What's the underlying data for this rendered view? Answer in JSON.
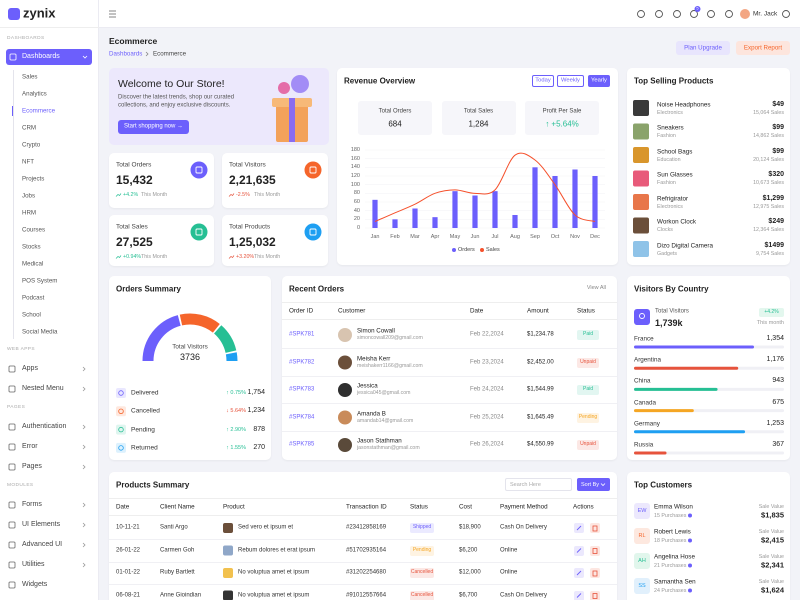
{
  "sidebar": {
    "logo": "zynix",
    "active_index": 2,
    "groups": [
      {
        "heading": "DASHBOARDS",
        "items": [
          "Dashboards"
        ],
        "submenu": [
          "Sales",
          "Analytics",
          "Ecommerce",
          "CRM",
          "Crypto",
          "NFT",
          "Projects",
          "Jobs",
          "HRM",
          "Courses",
          "Stocks",
          "Medical",
          "POS System",
          "Podcast",
          "School",
          "Social Media"
        ]
      },
      {
        "heading": "WEB APPS",
        "items": [
          "Apps",
          "Nested Menu"
        ]
      },
      {
        "heading": "PAGES",
        "items": [
          "Authentication",
          "Error",
          "Pages"
        ]
      },
      {
        "heading": "MODULES",
        "items": [
          "Forms",
          "UI Elements",
          "Advanced UI",
          "Utilities",
          "Widgets"
        ]
      }
    ]
  },
  "header": {
    "user": "Mr. Jack",
    "cart_badge": "5"
  },
  "page": {
    "title": "Ecommerce",
    "breadcrumb": [
      "Dashboards",
      "Ecommerce"
    ],
    "buttons": [
      "Plan Upgrade",
      "Export Report"
    ]
  },
  "welcome": {
    "title": "Welcome to Our Store!",
    "text": [
      "Discover the latest trends, shop our curated",
      "collections, and enjoy exclusive discounts."
    ],
    "button": "Start shopping now →"
  },
  "stats": [
    {
      "label": "Total Orders",
      "value": "15,432",
      "change": "+4.2%",
      "period": "This Month",
      "color": "#6c5ffc",
      "trend_color": "#26bf94"
    },
    {
      "label": "Total Visitors",
      "value": "2,21,635",
      "change": "-2.5%",
      "period": "This Month",
      "color": "#f5652b",
      "trend_color": "#e6533c"
    },
    {
      "label": "Total Sales",
      "value": "27,525",
      "change": "+0.94%",
      "period": "This Month",
      "color": "#26bf94",
      "trend_color": "#26bf94"
    },
    {
      "label": "Total Products",
      "value": "1,25,032",
      "change": "+3.20%",
      "period": "This Month",
      "color": "#1e9ff2",
      "trend_color": "#e6533c"
    }
  ],
  "revenue_overview": {
    "title": "Revenue Overview",
    "tabs": [
      "Today",
      "Weekly",
      "Yearly"
    ],
    "active_tab": 2,
    "stats": [
      {
        "label": "Total Orders",
        "value": "684"
      },
      {
        "label": "Total Sales",
        "value": "1,284"
      },
      {
        "label": "Profit Per Sale",
        "value": "↑ +5.64%"
      }
    ],
    "chart": {
      "type": "bar",
      "categories": [
        "Jan",
        "Feb",
        "Mar",
        "Apr",
        "May",
        "Jun",
        "Jul",
        "Aug",
        "Sep",
        "Oct",
        "Nov",
        "Dec"
      ],
      "series": [
        {
          "name": "Orders",
          "type": "bar",
          "color": "#6c5ffc",
          "values": [
            65,
            20,
            45,
            25,
            85,
            75,
            85,
            30,
            140,
            120,
            135,
            120
          ]
        },
        {
          "name": "Sales",
          "type": "line",
          "color": "#f5502b",
          "values": [
            15,
            35,
            55,
            80,
            88,
            80,
            88,
            168,
            157,
            100,
            30,
            15
          ]
        }
      ],
      "ylim": [
        0,
        180
      ],
      "yticks": [
        0,
        20,
        40,
        60,
        80,
        100,
        120,
        140,
        160,
        180
      ]
    }
  },
  "top_selling": {
    "title": "Top Selling Products",
    "items": [
      {
        "name": "Noise Headphones",
        "category": "Electronics",
        "price": "$49",
        "sales": "15,064 Sales"
      },
      {
        "name": "Sneakers",
        "category": "Fashion",
        "price": "$99",
        "sales": "14,862 Sales"
      },
      {
        "name": "School Bags",
        "category": "Education",
        "price": "$99",
        "sales": "20,124 Sales"
      },
      {
        "name": "Sun Glasses",
        "category": "Fashion",
        "price": "$320",
        "sales": "10,673 Sales"
      },
      {
        "name": "Refrigirator",
        "category": "Electronics",
        "price": "$1,299",
        "sales": "12,975 Sales"
      },
      {
        "name": "Workon Clock",
        "category": "Clocks",
        "price": "$249",
        "sales": "12,364 Sales"
      },
      {
        "name": "Dizo Digital Camera",
        "category": "Gadgets",
        "price": "$1499",
        "sales": "9,754 Sales"
      }
    ]
  },
  "orders_summary": {
    "title": "Orders Summary",
    "center_label": "Total Visitors",
    "center_value": "3736",
    "items": [
      {
        "label": "Delivered",
        "change": "↑ 0.75%",
        "value": 1754,
        "value_label": "1,754",
        "color": "#6c5ffc",
        "trend_color": "#26bf94"
      },
      {
        "label": "Cancelled",
        "change": "↓ 5.64%",
        "value": 1234,
        "value_label": "1,234",
        "color": "#f5652b",
        "trend_color": "#e6533c"
      },
      {
        "label": "Pending",
        "change": "↑ 2.90%",
        "value": 878,
        "value_label": "878",
        "color": "#26bf94",
        "trend_color": "#26bf94"
      },
      {
        "label": "Returned",
        "change": "↑ 1.55%",
        "value": 270,
        "value_label": "270",
        "color": "#1e9ff2",
        "trend_color": "#26bf94"
      }
    ]
  },
  "recent_orders": {
    "title": "Recent Orders",
    "link": "View All",
    "columns": [
      "Order ID",
      "Customer",
      "Date",
      "Amount",
      "Status"
    ],
    "rows": [
      {
        "id": "#SPK781",
        "name": "Simon Cowall",
        "email": "simoncowall209@gmail.com",
        "date": "Feb 22,2024",
        "amount": "$1,234.78",
        "status": "Paid",
        "status_color": "#26bf94"
      },
      {
        "id": "#SPK782",
        "name": "Meisha Kerr",
        "email": "meishakerr1166@gmail.com",
        "date": "Feb 23,2024",
        "amount": "$2,452.00",
        "status": "Unpaid",
        "status_color": "#e6533c"
      },
      {
        "id": "#SPK783",
        "name": "Jessica",
        "email": "jessica045@gmail.com",
        "date": "Feb 24,2024",
        "amount": "$1,544.99",
        "status": "Paid",
        "status_color": "#26bf94"
      },
      {
        "id": "#SPK784",
        "name": "Amanda B",
        "email": "amandab14@gmail.com",
        "date": "Feb 25,2024",
        "amount": "$1,645.49",
        "status": "Pending",
        "status_color": "#f5a623"
      },
      {
        "id": "#SPK785",
        "name": "Jason Stathman",
        "email": "jasonstathman@gmail.com",
        "date": "Feb 26,2024",
        "amount": "$4,550.99",
        "status": "Unpaid",
        "status_color": "#e6533c"
      }
    ]
  },
  "visitors_by_country": {
    "title": "Visitors By Country",
    "total_label": "Total Visitors",
    "total": "1,739k",
    "change": "+4.2%",
    "period": "This month",
    "countries": [
      {
        "name": "France",
        "value": 1354,
        "label": "1,354",
        "color": "#6c5ffc"
      },
      {
        "name": "Argentina",
        "value": 1176,
        "label": "1,176",
        "color": "#e6533c"
      },
      {
        "name": "China",
        "value": 943,
        "label": "943",
        "color": "#26bf94"
      },
      {
        "name": "Canada",
        "value": 675,
        "label": "675",
        "color": "#f5a623"
      },
      {
        "name": "Germany",
        "value": 1253,
        "label": "1,253",
        "color": "#1e9ff2"
      },
      {
        "name": "Russia",
        "value": 367,
        "label": "367",
        "color": "#e6533c"
      }
    ]
  },
  "products_summary": {
    "title": "Products Summary",
    "search_placeholder": "Search Here",
    "sort_button": "Sort By",
    "columns": [
      "Date",
      "Client Name",
      "Product",
      "Transaction ID",
      "Status",
      "Cost",
      "Payment Method",
      "Actions"
    ],
    "rows": [
      {
        "date": "10-11-21",
        "client": "Santi Argo",
        "product": "Sed vero et ipsum et",
        "transaction": "#23412858169",
        "status": "Shipped",
        "status_color": "#6c5ffc",
        "cost": "$18,900",
        "payment": "Cash On Delivery"
      },
      {
        "date": "26-01-22",
        "client": "Carmen Goh",
        "product": "Rebum dolores et erat ipsum",
        "transaction": "#51702935164",
        "status": "Pending",
        "status_color": "#f5a623",
        "cost": "$6,200",
        "payment": "Online"
      },
      {
        "date": "01-01-22",
        "client": "Ruby Bartlett",
        "product": "No voluptua amet et ipsum",
        "transaction": "#31202254680",
        "status": "Cancelled",
        "status_color": "#e6533c",
        "cost": "$12,000",
        "payment": "Online"
      },
      {
        "date": "06-08-21",
        "client": "Anne Gioindian",
        "product": "No voluptua amet et ipsum",
        "transaction": "#91012557664",
        "status": "Cancelled",
        "status_color": "#e6533c",
        "cost": "$6,700",
        "payment": "Cash On Delivery"
      }
    ]
  },
  "top_customers": {
    "title": "Top Customers",
    "items": [
      {
        "initials": "EW",
        "name": "Emma Wilson",
        "purchases": "15 Purchases",
        "value_label": "Sale Value",
        "value": "$1,835"
      },
      {
        "initials": "RL",
        "name": "Robert Lewis",
        "purchases": "18 Purchases",
        "value_label": "Sale Value",
        "value": "$2,415"
      },
      {
        "initials": "AH",
        "name": "Angelina Hose",
        "purchases": "21 Purchases",
        "value_label": "Sale Value",
        "value": "$2,341"
      },
      {
        "initials": "SS",
        "name": "Samantha Sen",
        "purchases": "24 Purchases",
        "value_label": "Sale Value",
        "value": "$1,624"
      }
    ]
  }
}
